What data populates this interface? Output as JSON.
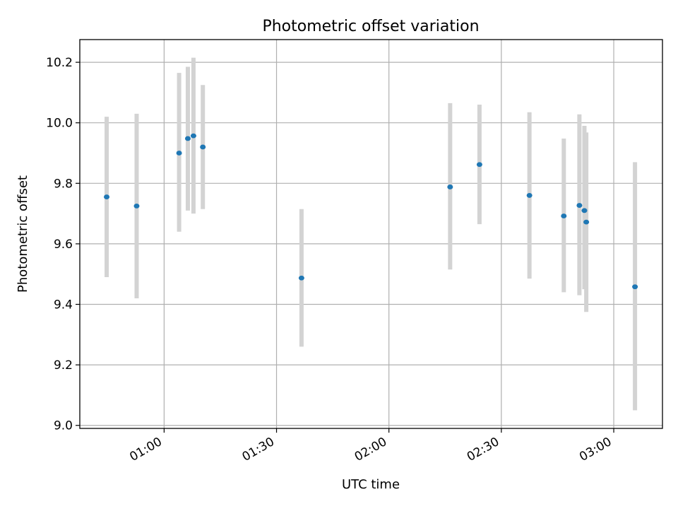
{
  "chart_data": {
    "type": "scatter",
    "title": "Photometric offset variation",
    "xlabel": "UTC time",
    "ylabel": "Photometric offset",
    "x_axis_type": "time",
    "xlim": [
      "00:37:30",
      "03:13:00"
    ],
    "ylim": [
      8.99,
      10.275
    ],
    "x_ticks": [
      "01:00",
      "01:30",
      "02:00",
      "02:30",
      "03:00"
    ],
    "y_ticks": [
      "9.0",
      "9.2",
      "9.4",
      "9.6",
      "9.8",
      "10.0",
      "10.2"
    ],
    "grid": true,
    "legend": "none",
    "series": [
      {
        "points": [
          {
            "x": "00:44:40",
            "y": 9.755,
            "err_low": 9.49,
            "err_high": 10.02
          },
          {
            "x": "00:52:40",
            "y": 9.725,
            "err_low": 9.42,
            "err_high": 10.03
          },
          {
            "x": "01:04:00",
            "y": 9.9,
            "err_low": 9.64,
            "err_high": 10.165
          },
          {
            "x": "01:06:20",
            "y": 9.948,
            "err_low": 9.71,
            "err_high": 10.185
          },
          {
            "x": "01:07:50",
            "y": 9.957,
            "err_low": 9.7,
            "err_high": 10.215
          },
          {
            "x": "01:10:20",
            "y": 9.92,
            "err_low": 9.715,
            "err_high": 10.125
          },
          {
            "x": "01:36:40",
            "y": 9.487,
            "err_low": 9.26,
            "err_high": 9.715
          },
          {
            "x": "02:16:20",
            "y": 9.788,
            "err_low": 9.515,
            "err_high": 10.065
          },
          {
            "x": "02:24:10",
            "y": 9.862,
            "err_low": 9.665,
            "err_high": 10.06
          },
          {
            "x": "02:37:30",
            "y": 9.76,
            "err_low": 9.485,
            "err_high": 10.035
          },
          {
            "x": "02:46:40",
            "y": 9.692,
            "err_low": 9.44,
            "err_high": 9.948
          },
          {
            "x": "02:50:50",
            "y": 9.727,
            "err_low": 9.43,
            "err_high": 10.028
          },
          {
            "x": "02:52:10",
            "y": 9.71,
            "err_low": 9.45,
            "err_high": 9.99
          },
          {
            "x": "02:52:40",
            "y": 9.672,
            "err_low": 9.375,
            "err_high": 9.968
          },
          {
            "x": "03:05:40",
            "y": 9.458,
            "err_low": 9.05,
            "err_high": 9.87
          }
        ]
      }
    ],
    "colors": {
      "marker": "#1f77b4",
      "errorbar": "#d3d3d3",
      "grid": "#b0b0b0",
      "axes": "#000000"
    }
  }
}
